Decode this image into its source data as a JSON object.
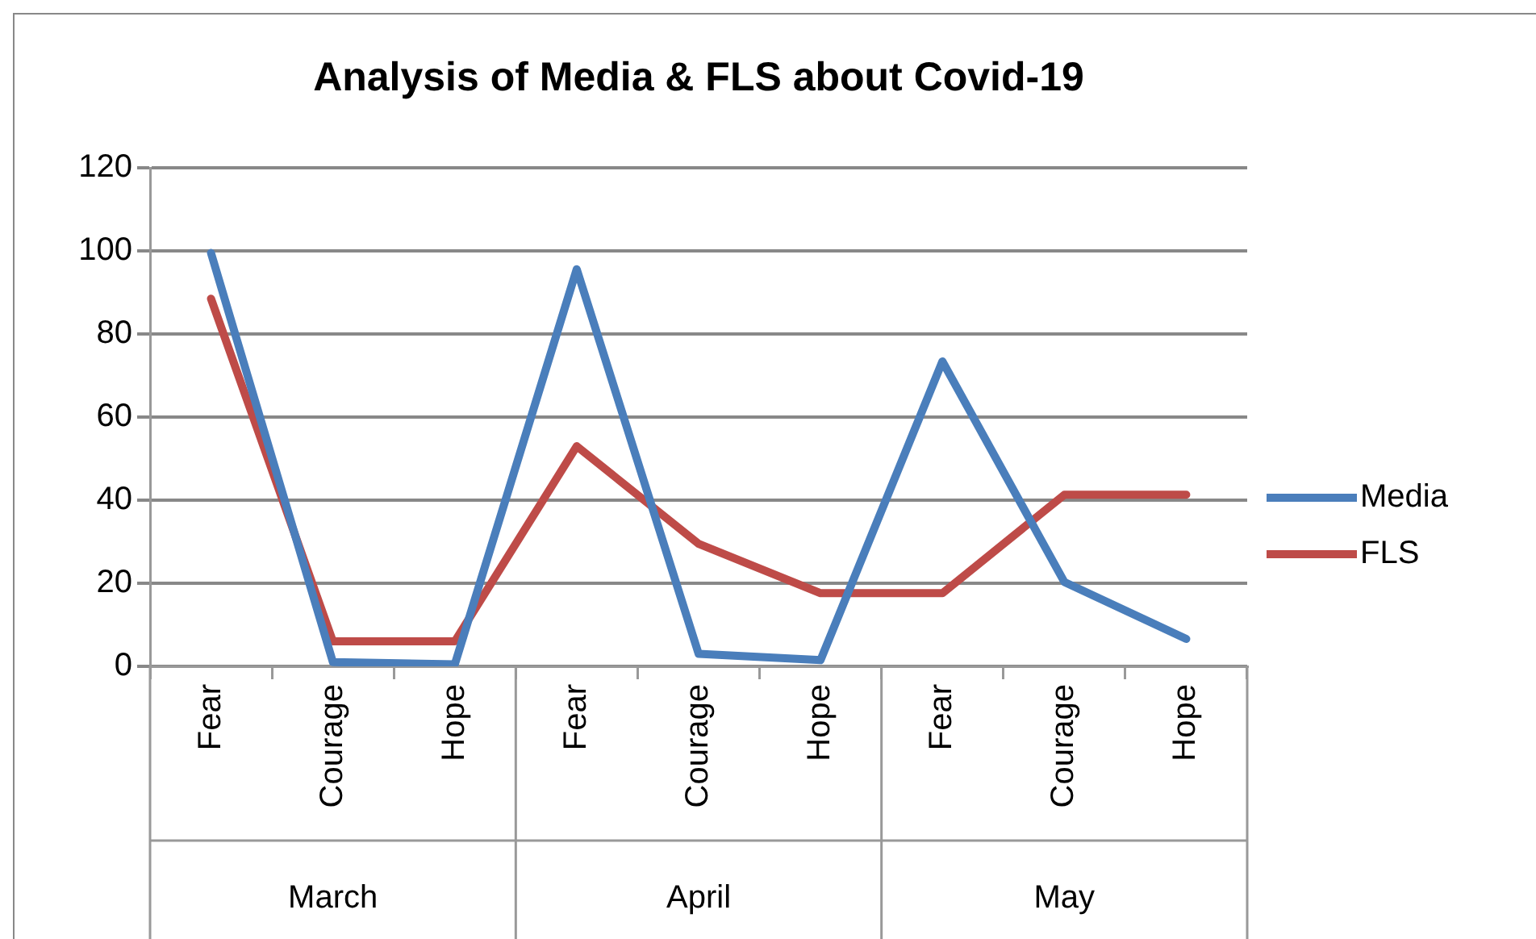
{
  "chart_data": {
    "type": "line",
    "title": "Analysis of Media & FLS about Covid-19",
    "categories": [
      "Fear",
      "Courage",
      "Hope",
      "Fear",
      "Courage",
      "Hope",
      "Fear",
      "Courage",
      "Hope"
    ],
    "annotations": [
      "March",
      "April",
      "May"
    ],
    "series": [
      {
        "name": "Media",
        "color": "#4a7ebb",
        "values": [
          99.5,
          1,
          0.5,
          95.6,
          3,
          1.5,
          73.4,
          20.3,
          6.6
        ]
      },
      {
        "name": "FLS",
        "color": "#be4b48",
        "values": [
          88.5,
          6,
          6,
          53,
          29.5,
          17.6,
          17.6,
          41.3,
          41.3
        ]
      }
    ],
    "ylim": [
      0,
      120
    ],
    "yticks": [
      0,
      20,
      40,
      60,
      80,
      100,
      120
    ],
    "grid": "y",
    "legend": "right",
    "marker": "none",
    "line_style": "solid"
  }
}
